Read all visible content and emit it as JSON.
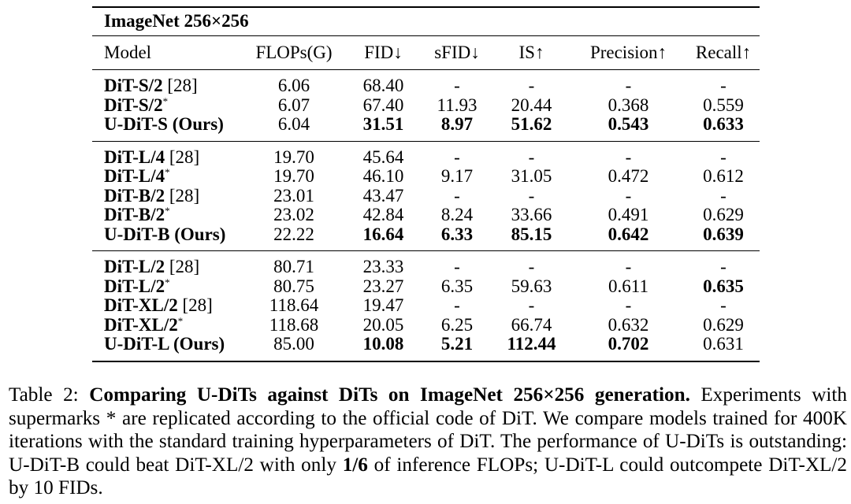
{
  "table": {
    "dataset_title": "ImageNet 256×256",
    "headers": [
      "Model",
      "FLOPs(G)",
      "FID↓",
      "sFID↓",
      "IS↑",
      "Precision↑",
      "Recall↑"
    ],
    "groups": [
      [
        {
          "model": "DiT-S/2",
          "suffix": " [28]",
          "star": false,
          "model_bold": true,
          "cells": [
            {
              "v": "6.06",
              "b": false
            },
            {
              "v": "68.40",
              "b": false
            },
            {
              "v": "-",
              "b": false
            },
            {
              "v": "-",
              "b": false
            },
            {
              "v": "-",
              "b": false
            },
            {
              "v": "-",
              "b": false
            }
          ]
        },
        {
          "model": "DiT-S/2",
          "suffix": "",
          "star": true,
          "model_bold": true,
          "cells": [
            {
              "v": "6.07",
              "b": false
            },
            {
              "v": "67.40",
              "b": false
            },
            {
              "v": "11.93",
              "b": false
            },
            {
              "v": "20.44",
              "b": false
            },
            {
              "v": "0.368",
              "b": false
            },
            {
              "v": "0.559",
              "b": false
            }
          ]
        },
        {
          "model": "U-DiT-S (Ours)",
          "suffix": "",
          "star": false,
          "model_bold": true,
          "cells": [
            {
              "v": "6.04",
              "b": false
            },
            {
              "v": "31.51",
              "b": true
            },
            {
              "v": "8.97",
              "b": true
            },
            {
              "v": "51.62",
              "b": true
            },
            {
              "v": "0.543",
              "b": true
            },
            {
              "v": "0.633",
              "b": true
            }
          ]
        }
      ],
      [
        {
          "model": "DiT-L/4",
          "suffix": " [28]",
          "star": false,
          "model_bold": true,
          "cells": [
            {
              "v": "19.70",
              "b": false
            },
            {
              "v": "45.64",
              "b": false
            },
            {
              "v": "-",
              "b": false
            },
            {
              "v": "-",
              "b": false
            },
            {
              "v": "-",
              "b": false
            },
            {
              "v": "-",
              "b": false
            }
          ]
        },
        {
          "model": "DiT-L/4",
          "suffix": "",
          "star": true,
          "model_bold": true,
          "cells": [
            {
              "v": "19.70",
              "b": false
            },
            {
              "v": "46.10",
              "b": false
            },
            {
              "v": "9.17",
              "b": false
            },
            {
              "v": "31.05",
              "b": false
            },
            {
              "v": "0.472",
              "b": false
            },
            {
              "v": "0.612",
              "b": false
            }
          ]
        },
        {
          "model": "DiT-B/2",
          "suffix": " [28]",
          "star": false,
          "model_bold": true,
          "cells": [
            {
              "v": "23.01",
              "b": false
            },
            {
              "v": "43.47",
              "b": false
            },
            {
              "v": "-",
              "b": false
            },
            {
              "v": "-",
              "b": false
            },
            {
              "v": "-",
              "b": false
            },
            {
              "v": "-",
              "b": false
            }
          ]
        },
        {
          "model": "DiT-B/2",
          "suffix": "",
          "star": true,
          "model_bold": true,
          "cells": [
            {
              "v": "23.02",
              "b": false
            },
            {
              "v": "42.84",
              "b": false
            },
            {
              "v": "8.24",
              "b": false
            },
            {
              "v": "33.66",
              "b": false
            },
            {
              "v": "0.491",
              "b": false
            },
            {
              "v": "0.629",
              "b": false
            }
          ]
        },
        {
          "model": "U-DiT-B (Ours)",
          "suffix": "",
          "star": false,
          "model_bold": true,
          "cells": [
            {
              "v": "22.22",
              "b": false
            },
            {
              "v": "16.64",
              "b": true
            },
            {
              "v": "6.33",
              "b": true
            },
            {
              "v": "85.15",
              "b": true
            },
            {
              "v": "0.642",
              "b": true
            },
            {
              "v": "0.639",
              "b": true
            }
          ]
        }
      ],
      [
        {
          "model": "DiT-L/2",
          "suffix": " [28]",
          "star": false,
          "model_bold": true,
          "cells": [
            {
              "v": "80.71",
              "b": false
            },
            {
              "v": "23.33",
              "b": false
            },
            {
              "v": "-",
              "b": false
            },
            {
              "v": "-",
              "b": false
            },
            {
              "v": "-",
              "b": false
            },
            {
              "v": "-",
              "b": false
            }
          ]
        },
        {
          "model": "DiT-L/2",
          "suffix": "",
          "star": true,
          "model_bold": true,
          "cells": [
            {
              "v": "80.75",
              "b": false
            },
            {
              "v": "23.27",
              "b": false
            },
            {
              "v": "6.35",
              "b": false
            },
            {
              "v": "59.63",
              "b": false
            },
            {
              "v": "0.611",
              "b": false
            },
            {
              "v": "0.635",
              "b": true
            }
          ]
        },
        {
          "model": "DiT-XL/2",
          "suffix": " [28]",
          "star": false,
          "model_bold": true,
          "cells": [
            {
              "v": "118.64",
              "b": false
            },
            {
              "v": "19.47",
              "b": false
            },
            {
              "v": "-",
              "b": false
            },
            {
              "v": "-",
              "b": false
            },
            {
              "v": "-",
              "b": false
            },
            {
              "v": "-",
              "b": false
            }
          ]
        },
        {
          "model": "DiT-XL/2",
          "suffix": "",
          "star": true,
          "model_bold": true,
          "cells": [
            {
              "v": "118.68",
              "b": false
            },
            {
              "v": "20.05",
              "b": false
            },
            {
              "v": "6.25",
              "b": false
            },
            {
              "v": "66.74",
              "b": false
            },
            {
              "v": "0.632",
              "b": false
            },
            {
              "v": "0.629",
              "b": false
            }
          ]
        },
        {
          "model": "U-DiT-L (Ours)",
          "suffix": "",
          "star": false,
          "model_bold": true,
          "cells": [
            {
              "v": "85.00",
              "b": false
            },
            {
              "v": "10.08",
              "b": true
            },
            {
              "v": "5.21",
              "b": true
            },
            {
              "v": "112.44",
              "b": true
            },
            {
              "v": "0.702",
              "b": true
            },
            {
              "v": "0.631",
              "b": false
            }
          ]
        }
      ]
    ],
    "star_symbol": "*"
  },
  "caption": {
    "label": "Table 2: ",
    "title": "Comparing U-DiTs against DiTs on ImageNet 256×256 generation.",
    "text_1": " Experiments with supermarks * are replicated according to the official code of DiT. We compare models trained for 400K iterations with the standard training hyperparameters of DiT. The performance of U-DiTs is outstanding: U-DiT-B could beat DiT-XL/2 with only ",
    "bold_fraction": "1/6",
    "text_2": " of inference FLOPs; U-DiT-L could outcompete DiT-XL/2 by 10 FIDs."
  }
}
